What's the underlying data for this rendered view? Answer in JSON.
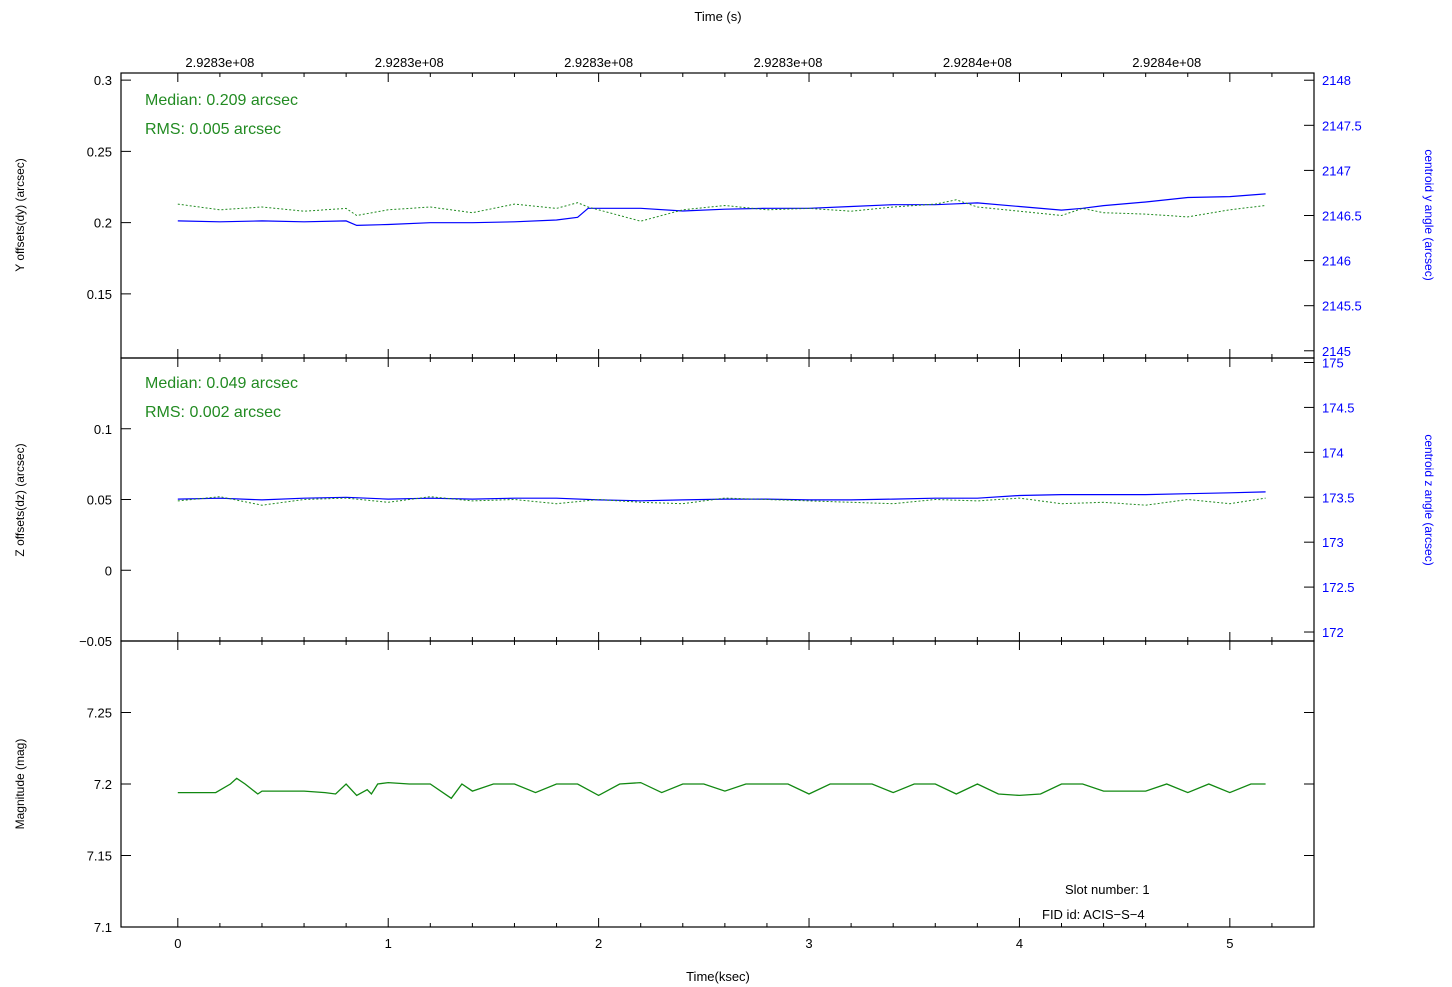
{
  "colors": {
    "axis": "#000000",
    "offset_series": "#228B22",
    "centroid_series": "#0000FF",
    "magnitude_series": "#118811"
  },
  "top_axis": {
    "title": "Time (s)",
    "tick_labels": [
      "2.9283e+08",
      "2.9283e+08",
      "2.9283e+08",
      "2.9283e+08",
      "2.9284e+08",
      "2.9284e+08"
    ],
    "tick_positions_ksec": [
      0.2,
      1.1,
      2.0,
      2.9,
      3.8,
      4.7
    ]
  },
  "bottom_axis": {
    "title": "Time(ksec)",
    "tick_labels": [
      "0",
      "1",
      "2",
      "3",
      "4",
      "5"
    ],
    "xlim": [
      -0.27,
      5.4
    ]
  },
  "annotations": {
    "y_median": "Median: 0.209 arcsec",
    "y_rms": "RMS: 0.005 arcsec",
    "z_median": "Median: 0.049 arcsec",
    "z_rms": "RMS: 0.002 arcsec",
    "slot": "Slot number: 1",
    "fid": "FID id: ACIS−S−4"
  },
  "chart_data": [
    {
      "type": "line",
      "panel": "y_offsets",
      "ylabel": "Y offsets(dy) (arcsec)",
      "y2label": "centroid y angle (arcsec)",
      "ylim": [
        0.105,
        0.305
      ],
      "yticks": [
        "0.3",
        "0.25",
        "0.2",
        "0.15"
      ],
      "y2lim": [
        2144.92,
        2148.08
      ],
      "y2ticks": [
        "2148",
        "2147.5",
        "2147",
        "2146.5",
        "2146",
        "2145.5",
        "2145"
      ],
      "x": [
        0,
        0.2,
        0.4,
        0.6,
        0.8,
        0.85,
        1.0,
        1.2,
        1.4,
        1.6,
        1.8,
        1.9,
        1.95,
        2.2,
        2.4,
        2.6,
        2.8,
        3.0,
        3.2,
        3.4,
        3.6,
        3.7,
        3.8,
        4.0,
        4.2,
        4.3,
        4.4,
        4.6,
        4.8,
        5.0,
        5.17
      ],
      "series": [
        {
          "axis": "right",
          "values": [
            2146.44,
            2146.43,
            2146.44,
            2146.43,
            2146.44,
            2146.39,
            2146.4,
            2146.42,
            2146.42,
            2146.43,
            2146.45,
            2146.48,
            2146.58,
            2146.58,
            2146.55,
            2146.57,
            2146.58,
            2146.58,
            2146.6,
            2146.62,
            2146.62,
            2146.63,
            2146.64,
            2146.6,
            2146.56,
            2146.58,
            2146.61,
            2146.65,
            2146.7,
            2146.71,
            2146.74
          ]
        },
        {
          "axis": "left",
          "values": [
            0.213,
            0.209,
            0.211,
            0.208,
            0.21,
            0.205,
            0.209,
            0.211,
            0.207,
            0.213,
            0.21,
            0.214,
            0.211,
            0.201,
            0.209,
            0.212,
            0.209,
            0.21,
            0.208,
            0.211,
            0.213,
            0.216,
            0.211,
            0.208,
            0.205,
            0.21,
            0.207,
            0.206,
            0.204,
            0.209,
            0.212
          ]
        }
      ]
    },
    {
      "type": "line",
      "panel": "z_offsets",
      "ylabel": "Z offsets(dz) (arcsec)",
      "y2label": "centroid z angle (arcsec)",
      "ylim": [
        -0.05,
        0.15
      ],
      "yticks": [
        "0.1",
        "0.05",
        "0",
        "−0.05"
      ],
      "y2lim": [
        171.9,
        175.05
      ],
      "y2ticks": [
        "175",
        "174.5",
        "174",
        "173.5",
        "173",
        "172.5",
        "172"
      ],
      "x": [
        0,
        0.2,
        0.4,
        0.6,
        0.8,
        1.0,
        1.2,
        1.4,
        1.6,
        1.8,
        2.0,
        2.2,
        2.4,
        2.6,
        2.8,
        3.0,
        3.2,
        3.4,
        3.6,
        3.8,
        4.0,
        4.2,
        4.4,
        4.6,
        4.8,
        5.0,
        5.17
      ],
      "series": [
        {
          "axis": "right",
          "values": [
            173.48,
            173.49,
            173.47,
            173.49,
            173.5,
            173.48,
            173.49,
            173.48,
            173.49,
            173.49,
            173.47,
            173.46,
            173.47,
            173.48,
            173.48,
            173.47,
            173.47,
            173.48,
            173.49,
            173.49,
            173.52,
            173.53,
            173.53,
            173.53,
            173.54,
            173.55,
            173.56
          ]
        },
        {
          "axis": "left",
          "values": [
            0.049,
            0.052,
            0.046,
            0.05,
            0.051,
            0.048,
            0.052,
            0.049,
            0.05,
            0.047,
            0.05,
            0.048,
            0.047,
            0.051,
            0.05,
            0.049,
            0.048,
            0.047,
            0.05,
            0.049,
            0.051,
            0.047,
            0.048,
            0.046,
            0.05,
            0.047,
            0.051
          ]
        }
      ]
    },
    {
      "type": "line",
      "panel": "magnitude",
      "ylabel": "Magnitude (mag)",
      "ylim": [
        7.1,
        7.3
      ],
      "yticks": [
        "7.1",
        "7.15",
        "7.2",
        "7.25"
      ],
      "x": [
        0,
        0.18,
        0.25,
        0.28,
        0.32,
        0.38,
        0.4,
        0.5,
        0.6,
        0.7,
        0.75,
        0.8,
        0.85,
        0.9,
        0.92,
        0.95,
        1.0,
        1.1,
        1.2,
        1.3,
        1.35,
        1.4,
        1.5,
        1.6,
        1.7,
        1.8,
        1.9,
        2.0,
        2.1,
        2.2,
        2.3,
        2.4,
        2.5,
        2.6,
        2.7,
        2.8,
        2.9,
        3.0,
        3.1,
        3.2,
        3.3,
        3.4,
        3.5,
        3.6,
        3.7,
        3.8,
        3.9,
        4.0,
        4.1,
        4.2,
        4.3,
        4.4,
        4.5,
        4.6,
        4.7,
        4.8,
        4.9,
        5.0,
        5.1,
        5.17
      ],
      "series": [
        {
          "values": [
            7.194,
            7.194,
            7.2,
            7.204,
            7.2,
            7.193,
            7.195,
            7.195,
            7.195,
            7.194,
            7.193,
            7.2,
            7.192,
            7.196,
            7.193,
            7.2,
            7.201,
            7.2,
            7.2,
            7.19,
            7.2,
            7.195,
            7.2,
            7.2,
            7.194,
            7.2,
            7.2,
            7.192,
            7.2,
            7.201,
            7.194,
            7.2,
            7.2,
            7.195,
            7.2,
            7.2,
            7.2,
            7.193,
            7.2,
            7.2,
            7.2,
            7.194,
            7.2,
            7.2,
            7.193,
            7.2,
            7.193,
            7.192,
            7.193,
            7.2,
            7.2,
            7.195,
            7.195,
            7.195,
            7.2,
            7.194,
            7.2,
            7.194,
            7.2,
            7.2
          ]
        }
      ]
    }
  ]
}
